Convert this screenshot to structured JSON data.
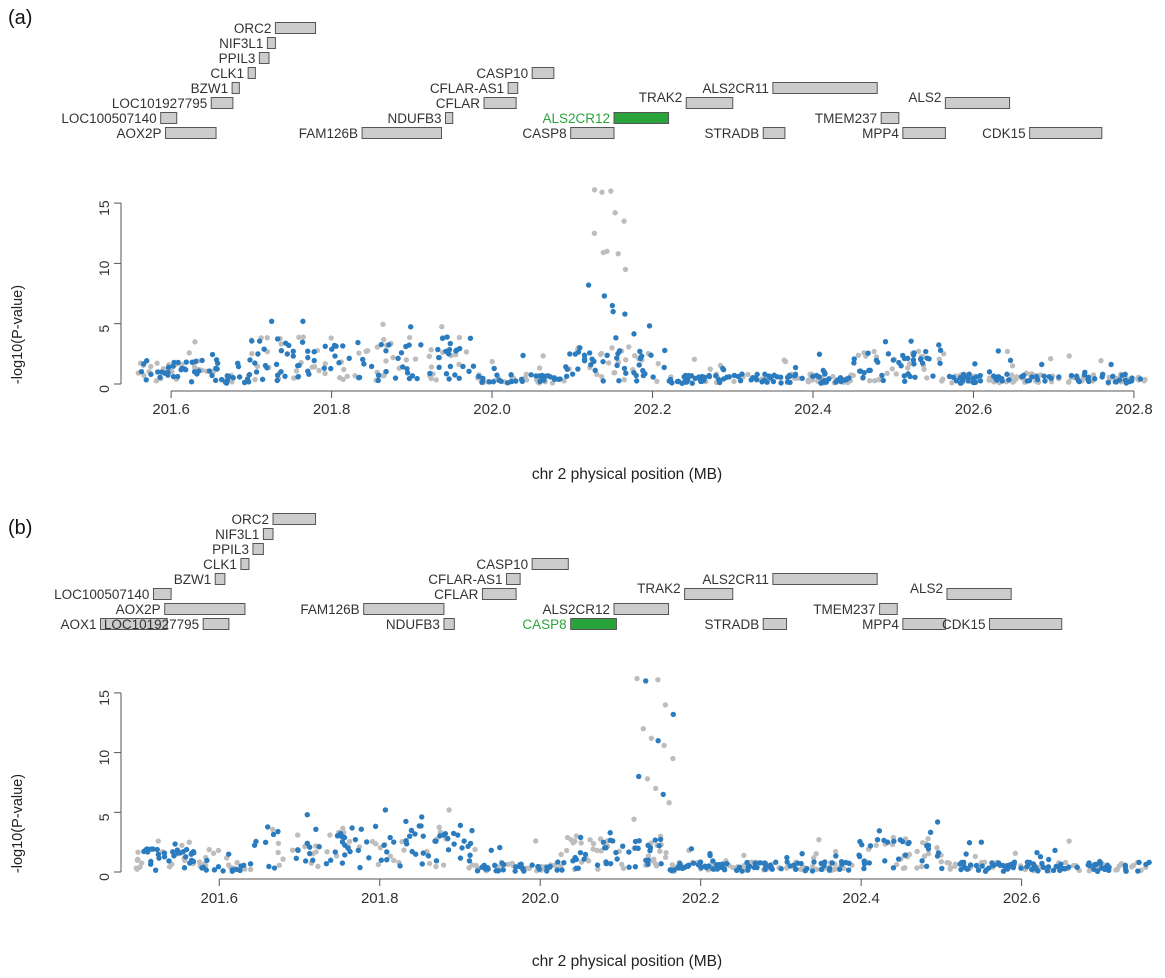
{
  "chart_data": [
    {
      "panel_label": "(a)",
      "type": "scatter",
      "xlabel": "chr 2 physical position (MB)",
      "ylabel": "-log10(P-value)",
      "xlim": [
        201.55,
        202.83
      ],
      "ylim": [
        0,
        16.5
      ],
      "xticks": [
        "201.6",
        "201.8",
        "202.0",
        "202.2",
        "202.4",
        "202.6",
        "202.8"
      ],
      "yticks": [
        "0",
        "5",
        "10",
        "15"
      ],
      "grid": false,
      "highlight_color": "#2aa43a",
      "gene_box_color": "#cccccc",
      "series_colors": {
        "grey": "#bdbdbd",
        "blue": "#2b7bbf"
      },
      "genes": [
        {
          "name": "ORC2",
          "start": 201.73,
          "end": 201.78,
          "row": 7,
          "label_side": "left"
        },
        {
          "name": "NIF3L1",
          "start": 201.72,
          "end": 201.73,
          "row": 6,
          "label_side": "left"
        },
        {
          "name": "PPIL3",
          "start": 201.71,
          "end": 201.722,
          "row": 5,
          "label_side": "left"
        },
        {
          "name": "CLK1",
          "start": 201.696,
          "end": 201.705,
          "row": 4,
          "label_side": "left"
        },
        {
          "name": "BZW1",
          "start": 201.676,
          "end": 201.685,
          "row": 3,
          "label_side": "left"
        },
        {
          "name": "LOC101927795",
          "start": 201.65,
          "end": 201.677,
          "row": 2,
          "label_side": "left"
        },
        {
          "name": "LOC100507140",
          "start": 201.587,
          "end": 201.607,
          "row": 1,
          "label_side": "left"
        },
        {
          "name": "AOX2P",
          "start": 201.593,
          "end": 201.656,
          "row": 0,
          "label_side": "left"
        },
        {
          "name": "CASP10",
          "start": 202.05,
          "end": 202.077,
          "row": 4,
          "label_side": "left"
        },
        {
          "name": "CFLAR-AS1",
          "start": 202.02,
          "end": 202.032,
          "row": 3,
          "label_side": "left"
        },
        {
          "name": "CFLAR",
          "start": 201.99,
          "end": 202.03,
          "row": 2,
          "label_side": "left"
        },
        {
          "name": "NDUFB3",
          "start": 201.942,
          "end": 201.951,
          "row": 1,
          "label_side": "left"
        },
        {
          "name": "FAM126B",
          "start": 201.838,
          "end": 201.937,
          "row": 0,
          "label_side": "left"
        },
        {
          "name": "ALS2CR12",
          "start": 202.152,
          "end": 202.22,
          "row": 1,
          "label_side": "left",
          "highlight": true
        },
        {
          "name": "CASP8",
          "start": 202.098,
          "end": 202.152,
          "row": 0,
          "label_side": "left"
        },
        {
          "name": "TRAK2",
          "start": 202.242,
          "end": 202.3,
          "row": 2,
          "label_side": "top"
        },
        {
          "name": "STRADB",
          "start": 202.338,
          "end": 202.365,
          "row": 0,
          "label_side": "left"
        },
        {
          "name": "ALS2CR11",
          "start": 202.35,
          "end": 202.48,
          "row": 3,
          "label_side": "left"
        },
        {
          "name": "TMEM237",
          "start": 202.485,
          "end": 202.507,
          "row": 1,
          "label_side": "left"
        },
        {
          "name": "ALS2",
          "start": 202.565,
          "end": 202.645,
          "row": 2,
          "label_side": "top"
        },
        {
          "name": "MPP4",
          "start": 202.512,
          "end": 202.565,
          "row": 0,
          "label_side": "left"
        },
        {
          "name": "CDK15",
          "start": 202.67,
          "end": 202.76,
          "row": 0,
          "label_side": "left"
        }
      ]
    },
    {
      "panel_label": "(b)",
      "type": "scatter",
      "xlabel": "chr 2 physical position (MB)",
      "ylabel": "-log10(P-value)",
      "xlim": [
        201.49,
        202.77
      ],
      "ylim": [
        0,
        16.5
      ],
      "xticks": [
        "201.6",
        "201.8",
        "202.0",
        "202.2",
        "202.4",
        "202.6"
      ],
      "yticks": [
        "0",
        "5",
        "10",
        "15"
      ],
      "grid": false,
      "highlight_color": "#2aa43a",
      "gene_box_color": "#cccccc",
      "series_colors": {
        "grey": "#bdbdbd",
        "blue": "#2b7bbf"
      },
      "genes": [
        {
          "name": "ORC2",
          "start": 201.667,
          "end": 201.72,
          "row": 7,
          "label_side": "left"
        },
        {
          "name": "NIF3L1",
          "start": 201.655,
          "end": 201.667,
          "row": 6,
          "label_side": "left"
        },
        {
          "name": "PPIL3",
          "start": 201.642,
          "end": 201.655,
          "row": 5,
          "label_side": "left"
        },
        {
          "name": "CLK1",
          "start": 201.627,
          "end": 201.637,
          "row": 4,
          "label_side": "left"
        },
        {
          "name": "BZW1",
          "start": 201.595,
          "end": 201.607,
          "row": 3,
          "label_side": "left"
        },
        {
          "name": "LOC100507140",
          "start": 201.518,
          "end": 201.54,
          "row": 2,
          "label_side": "left"
        },
        {
          "name": "AOX2P",
          "start": 201.532,
          "end": 201.632,
          "row": 1,
          "label_side": "left"
        },
        {
          "name": "AOX1",
          "start": 201.452,
          "end": 201.535,
          "row": 0,
          "label_side": "left"
        },
        {
          "name": "LOC101927795",
          "start": 201.58,
          "end": 201.612,
          "row": 0,
          "label_side": "left"
        },
        {
          "name": "CASP10",
          "start": 201.99,
          "end": 202.035,
          "row": 4,
          "label_side": "left"
        },
        {
          "name": "CFLAR-AS1",
          "start": 201.958,
          "end": 201.975,
          "row": 3,
          "label_side": "left"
        },
        {
          "name": "CFLAR",
          "start": 201.928,
          "end": 201.97,
          "row": 2,
          "label_side": "left"
        },
        {
          "name": "FAM126B",
          "start": 201.78,
          "end": 201.88,
          "row": 1,
          "label_side": "left"
        },
        {
          "name": "NDUFB3",
          "start": 201.88,
          "end": 201.893,
          "row": 0,
          "label_side": "left"
        },
        {
          "name": "ALS2CR12",
          "start": 202.092,
          "end": 202.16,
          "row": 1,
          "label_side": "left"
        },
        {
          "name": "CASP8",
          "start": 202.038,
          "end": 202.095,
          "row": 0,
          "label_side": "left",
          "highlight": true
        },
        {
          "name": "TRAK2",
          "start": 202.18,
          "end": 202.24,
          "row": 2,
          "label_side": "top"
        },
        {
          "name": "STRADB",
          "start": 202.278,
          "end": 202.307,
          "row": 0,
          "label_side": "left"
        },
        {
          "name": "ALS2CR11",
          "start": 202.29,
          "end": 202.42,
          "row": 3,
          "label_side": "left"
        },
        {
          "name": "TMEM237",
          "start": 202.423,
          "end": 202.445,
          "row": 1,
          "label_side": "left"
        },
        {
          "name": "ALS2",
          "start": 202.507,
          "end": 202.587,
          "row": 2,
          "label_side": "top"
        },
        {
          "name": "MPP4",
          "start": 202.452,
          "end": 202.505,
          "row": 0,
          "label_side": "left"
        },
        {
          "name": "CDK15",
          "start": 202.56,
          "end": 202.65,
          "row": 0,
          "label_side": "left"
        }
      ]
    }
  ]
}
